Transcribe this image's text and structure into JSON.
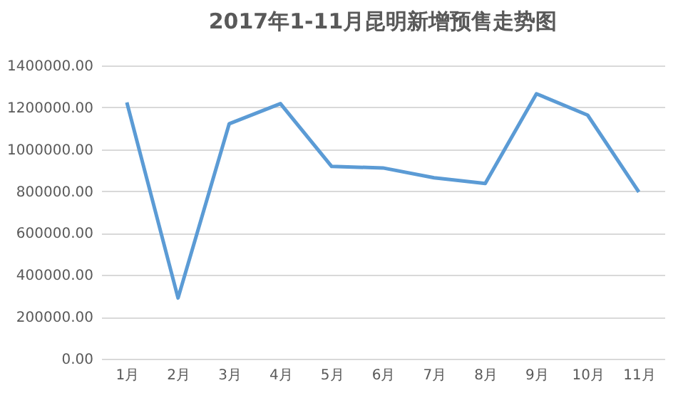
{
  "chart_data": {
    "type": "line",
    "title": "2017年1-11月昆明新增预售走势图",
    "categories": [
      "1月",
      "2月",
      "3月",
      "4月",
      "5月",
      "6月",
      "7月",
      "8月",
      "9月",
      "10月",
      "11月"
    ],
    "series": [
      {
        "color": "#5b9bd5",
        "values": [
          1224000,
          290000,
          1122000,
          1218000,
          918000,
          911000,
          864000,
          837000,
          1265000,
          1163000,
          796000
        ]
      }
    ],
    "ylim": [
      0,
      1400000
    ],
    "yticks": [
      {
        "value": 0,
        "label": "0.00"
      },
      {
        "value": 200000,
        "label": "200000.00"
      },
      {
        "value": 400000,
        "label": "400000.00"
      },
      {
        "value": 600000,
        "label": "600000.00"
      },
      {
        "value": 800000,
        "label": "800000.00"
      },
      {
        "value": 1000000,
        "label": "1000000.00"
      },
      {
        "value": 1200000,
        "label": "1200000.00"
      },
      {
        "value": 1400000,
        "label": "1400000.00"
      }
    ],
    "grid": "y",
    "marker": "none",
    "line_style": "solid"
  }
}
